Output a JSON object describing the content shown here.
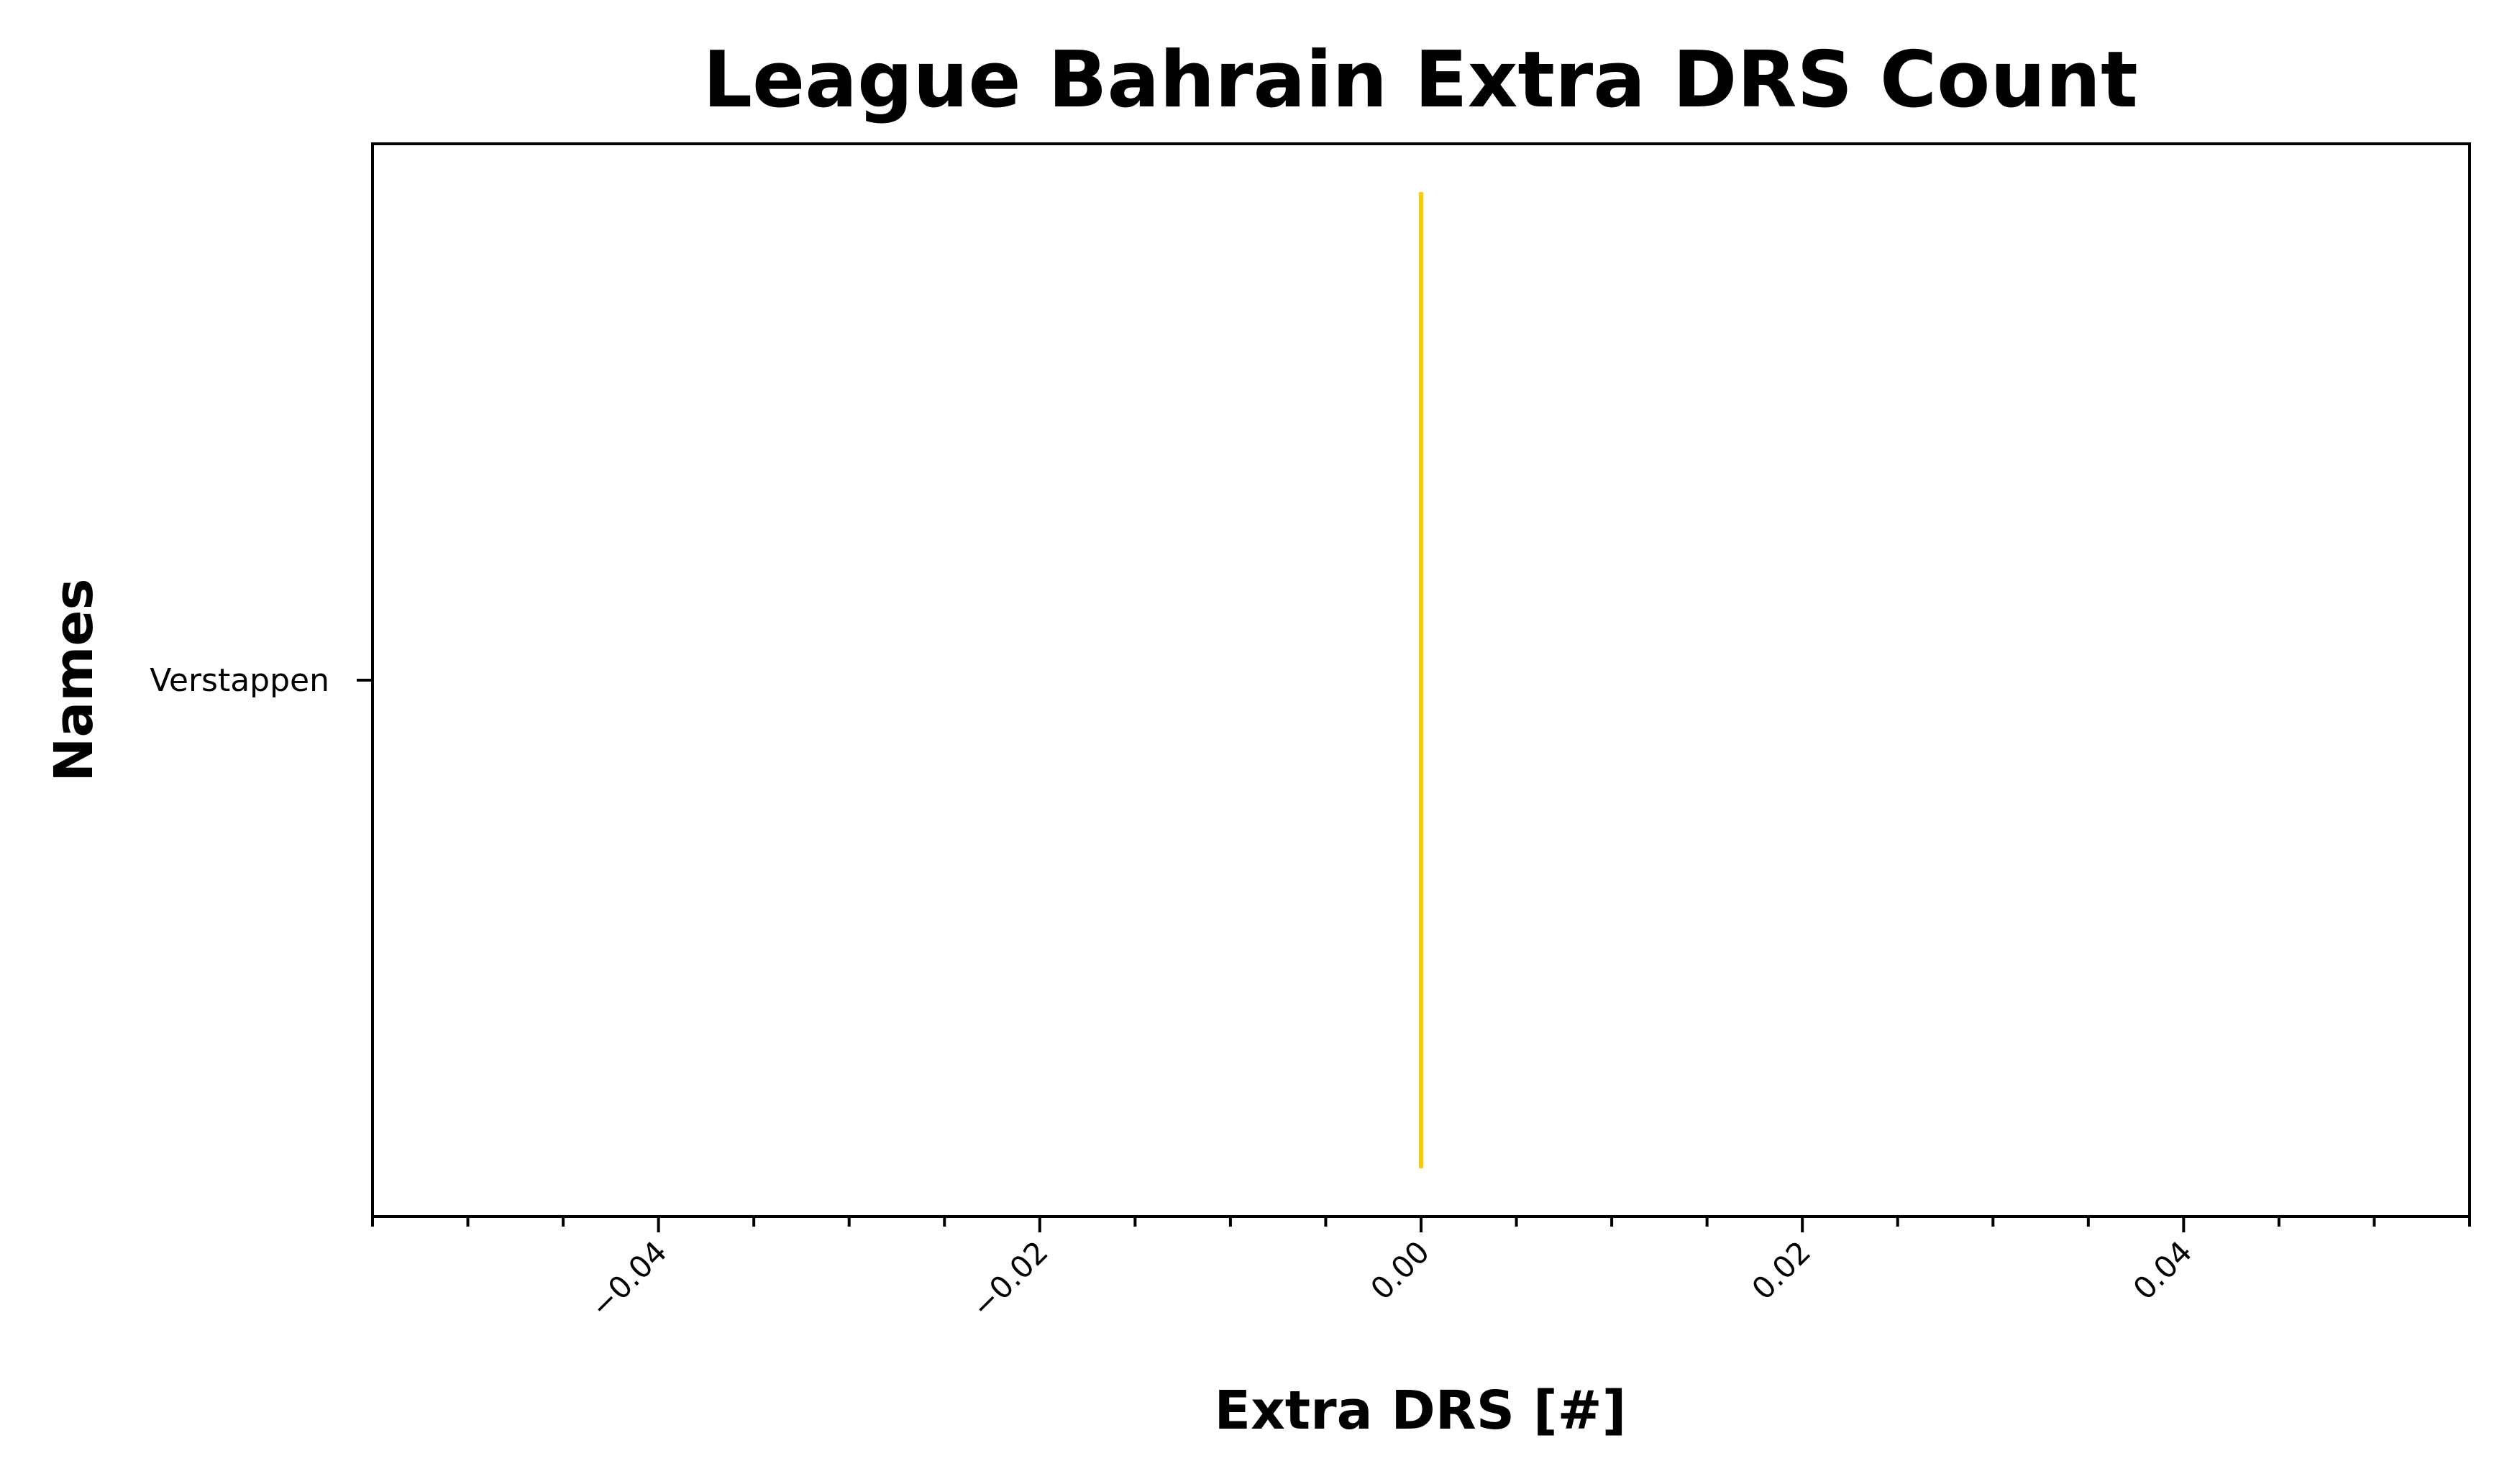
{
  "chart_data": {
    "type": "bar",
    "orientation": "horizontal",
    "title": "League Bahrain Extra DRS Count",
    "xlabel": "Extra DRS [#]",
    "ylabel": "Names",
    "categories": [
      "Verstappen"
    ],
    "values": [
      0
    ],
    "xlim": [
      -0.055,
      0.055
    ],
    "xticks": [
      -0.04,
      -0.02,
      0.0,
      0.02,
      0.04
    ],
    "xtick_labels": [
      "−0.04",
      "−0.02",
      "0.00",
      "0.02",
      "0.04"
    ],
    "minor_tick_step": 0.005,
    "grid": false,
    "legend": "none",
    "bar_color": "#ffc906"
  }
}
